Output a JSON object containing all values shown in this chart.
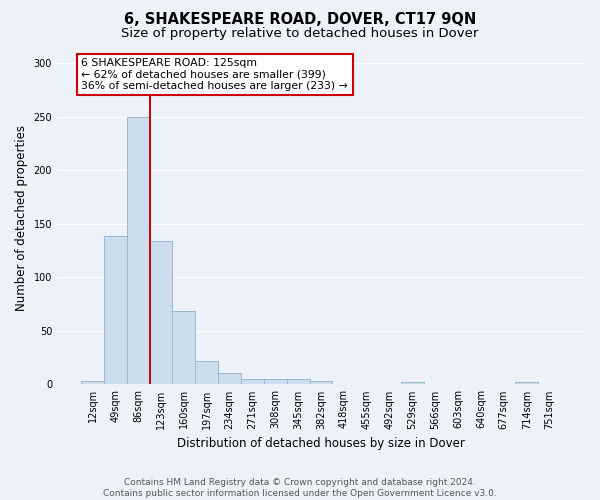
{
  "title": "6, SHAKESPEARE ROAD, DOVER, CT17 9QN",
  "subtitle": "Size of property relative to detached houses in Dover",
  "xlabel": "Distribution of detached houses by size in Dover",
  "ylabel": "Number of detached properties",
  "bar_labels": [
    "12sqm",
    "49sqm",
    "86sqm",
    "123sqm",
    "160sqm",
    "197sqm",
    "234sqm",
    "271sqm",
    "308sqm",
    "345sqm",
    "382sqm",
    "418sqm",
    "455sqm",
    "492sqm",
    "529sqm",
    "566sqm",
    "603sqm",
    "640sqm",
    "677sqm",
    "714sqm",
    "751sqm"
  ],
  "bar_values": [
    3,
    139,
    250,
    134,
    69,
    22,
    11,
    5,
    5,
    5,
    3,
    0,
    0,
    0,
    2,
    0,
    0,
    0,
    0,
    2,
    0
  ],
  "bar_color": "#ccdded",
  "bar_edge_color": "#9ab8ce",
  "bar_linewidth": 0.7,
  "vline_x_index": 3,
  "vline_color": "#cc0000",
  "vline_linewidth": 1.4,
  "annotation_text": "6 SHAKESPEARE ROAD: 125sqm\n← 62% of detached houses are smaller (399)\n36% of semi-detached houses are larger (233) →",
  "annotation_box_color": "#ffffff",
  "annotation_box_edge_color": "#cc0000",
  "annotation_fontsize": 7.8,
  "ylim": [
    0,
    310
  ],
  "yticks": [
    0,
    50,
    100,
    150,
    200,
    250,
    300
  ],
  "background_color": "#edf2fa",
  "grid_color": "#ffffff",
  "title_fontsize": 10.5,
  "subtitle_fontsize": 9.5,
  "xlabel_fontsize": 8.5,
  "ylabel_fontsize": 8.5,
  "tick_fontsize": 7.0,
  "footer_text": "Contains HM Land Registry data © Crown copyright and database right 2024.\nContains public sector information licensed under the Open Government Licence v3.0.",
  "footer_fontsize": 6.5
}
